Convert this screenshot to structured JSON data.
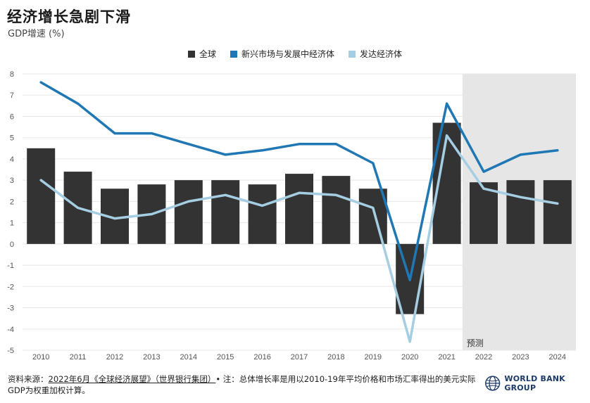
{
  "header": {
    "title": "经济增长急剧下滑",
    "subtitle": "GDP增速 (%)"
  },
  "colors": {
    "global": "#333333",
    "emerging": "#1f77b4",
    "advanced": "#a6cee3",
    "forecast_bg": "#e6e6e6",
    "grid": "#e8e8e8"
  },
  "chart_data": {
    "type": "bar",
    "categories": [
      "2010",
      "2011",
      "2012",
      "2013",
      "2014",
      "2015",
      "2016",
      "2017",
      "2018",
      "2019",
      "2020",
      "2021",
      "2022",
      "2023",
      "2024"
    ],
    "series": [
      {
        "name": "全球",
        "type": "bar",
        "color": "#333333",
        "values": [
          4.5,
          3.4,
          2.6,
          2.8,
          3.0,
          3.0,
          2.8,
          3.3,
          3.2,
          2.6,
          -3.3,
          5.7,
          2.9,
          3.0,
          3.0
        ]
      },
      {
        "name": "新兴市场与发展中经济体",
        "type": "line",
        "color": "#1f77b4",
        "values": [
          7.6,
          6.6,
          5.2,
          5.2,
          4.7,
          4.2,
          4.4,
          4.7,
          4.7,
          3.8,
          -1.7,
          6.6,
          3.4,
          4.2,
          4.4
        ]
      },
      {
        "name": "发达经济体",
        "type": "line",
        "color": "#a6cee3",
        "values": [
          3.0,
          1.7,
          1.2,
          1.4,
          2.0,
          2.3,
          1.8,
          2.4,
          2.3,
          1.7,
          -4.6,
          5.1,
          2.6,
          2.2,
          1.9
        ]
      }
    ],
    "ylim": [
      -5,
      8
    ],
    "yticks": [
      "8",
      "7",
      "6",
      "5",
      "4",
      "3",
      "2",
      "1",
      "0",
      "-1",
      "-2",
      "-3",
      "-4",
      "-5"
    ],
    "forecast": {
      "label": "预测",
      "start_category": "2022"
    },
    "grid": true,
    "legend_position": "top-center"
  },
  "footer": {
    "source_prefix": "资料来源：",
    "source_link": "2022年6月《全球经济展望》（世界银行集团）",
    "note": "• 注：总体增长率是用以2010-19年平均价格和市场汇率得出的美元实际GDP为权重加权计算。"
  },
  "logo": {
    "text": "WORLD BANK GROUP",
    "icon": "globe-icon"
  }
}
